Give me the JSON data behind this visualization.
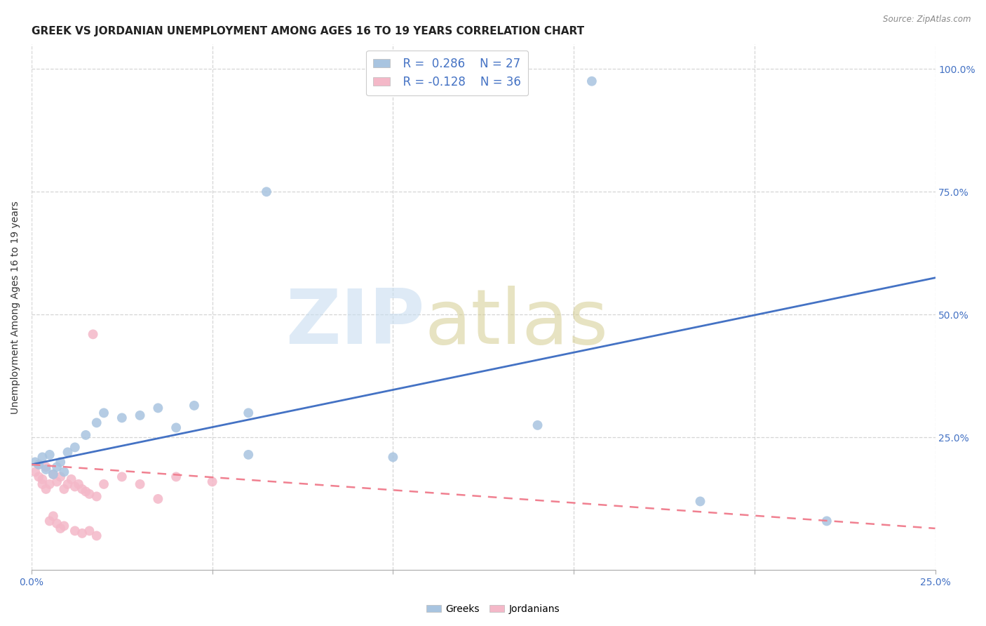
{
  "title": "GREEK VS JORDANIAN UNEMPLOYMENT AMONG AGES 16 TO 19 YEARS CORRELATION CHART",
  "source": "Source: ZipAtlas.com",
  "ylabel": "Unemployment Among Ages 16 to 19 years",
  "xlim": [
    0.0,
    0.25
  ],
  "ylim": [
    -0.02,
    1.05
  ],
  "yticks": [
    0.25,
    0.5,
    0.75,
    1.0
  ],
  "ytick_labels": [
    "25.0%",
    "50.0%",
    "75.0%",
    "100.0%"
  ],
  "xticks": [
    0.0,
    0.05,
    0.1,
    0.15,
    0.2,
    0.25
  ],
  "xtick_labels": [
    "0.0%",
    "",
    "",
    "",
    "",
    "25.0%"
  ],
  "greek_color": "#a8c4e0",
  "jordan_color": "#f4b8c8",
  "greek_line_color": "#4472c4",
  "jordan_line_color": "#f08090",
  "legend_R_greek": "R =  0.286",
  "legend_N_greek": "N = 27",
  "legend_R_jordan": "R = -0.128",
  "legend_N_jordan": "N = 36",
  "greeks_x": [
    0.001,
    0.002,
    0.003,
    0.004,
    0.005,
    0.006,
    0.007,
    0.008,
    0.009,
    0.01,
    0.012,
    0.015,
    0.018,
    0.02,
    0.025,
    0.03,
    0.035,
    0.04,
    0.045,
    0.06,
    0.065,
    0.1,
    0.14,
    0.155,
    0.185,
    0.22,
    0.06
  ],
  "greeks_y": [
    0.2,
    0.195,
    0.21,
    0.185,
    0.215,
    0.175,
    0.19,
    0.2,
    0.18,
    0.22,
    0.23,
    0.255,
    0.28,
    0.3,
    0.29,
    0.295,
    0.31,
    0.27,
    0.315,
    0.3,
    0.75,
    0.21,
    0.275,
    0.975,
    0.12,
    0.08,
    0.215
  ],
  "jordanians_x": [
    0.001,
    0.002,
    0.003,
    0.004,
    0.005,
    0.006,
    0.007,
    0.008,
    0.009,
    0.01,
    0.011,
    0.012,
    0.013,
    0.014,
    0.015,
    0.016,
    0.017,
    0.018,
    0.002,
    0.003,
    0.004,
    0.005,
    0.006,
    0.007,
    0.008,
    0.009,
    0.02,
    0.025,
    0.03,
    0.035,
    0.04,
    0.05,
    0.012,
    0.014,
    0.016,
    0.018
  ],
  "jordanians_y": [
    0.18,
    0.195,
    0.165,
    0.19,
    0.155,
    0.175,
    0.16,
    0.17,
    0.145,
    0.155,
    0.165,
    0.15,
    0.155,
    0.145,
    0.14,
    0.135,
    0.46,
    0.13,
    0.17,
    0.155,
    0.145,
    0.08,
    0.09,
    0.075,
    0.065,
    0.07,
    0.155,
    0.17,
    0.155,
    0.125,
    0.17,
    0.16,
    0.06,
    0.055,
    0.06,
    0.05
  ],
  "greek_trendline_x": [
    0.0,
    0.25
  ],
  "greek_trendline_y": [
    0.195,
    0.575
  ],
  "jordan_trendline_x": [
    0.0,
    0.25
  ],
  "jordan_trendline_y": [
    0.195,
    0.065
  ],
  "background_color": "#ffffff",
  "grid_color": "#cccccc"
}
